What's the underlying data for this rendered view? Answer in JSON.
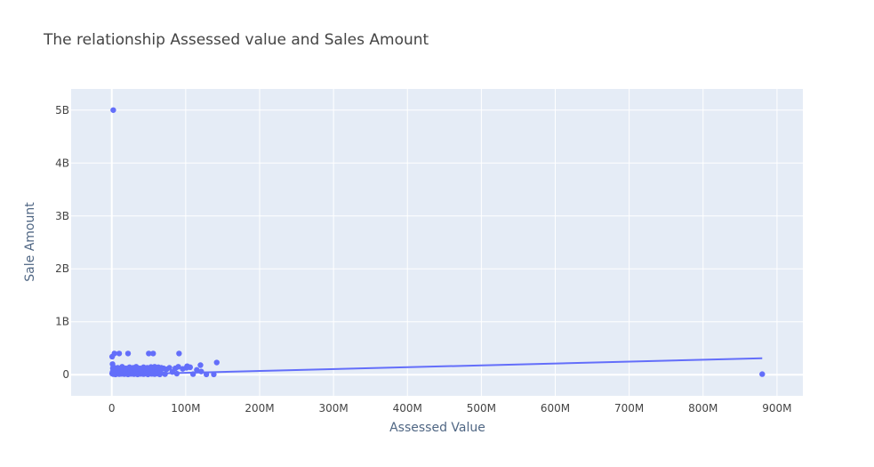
{
  "chart_data": {
    "type": "scatter",
    "title": "The relationship Assessed value and Sales Amount",
    "xlabel": "Assessed Value",
    "ylabel": "Sale Amount",
    "xlim": [
      -55000000,
      935000000
    ],
    "ylim": [
      -400000000,
      5400000000
    ],
    "x_ticks": [
      {
        "value": 0,
        "label": "0"
      },
      {
        "value": 100000000,
        "label": "100M"
      },
      {
        "value": 200000000,
        "label": "200M"
      },
      {
        "value": 300000000,
        "label": "300M"
      },
      {
        "value": 400000000,
        "label": "400M"
      },
      {
        "value": 500000000,
        "label": "500M"
      },
      {
        "value": 600000000,
        "label": "600M"
      },
      {
        "value": 700000000,
        "label": "700M"
      },
      {
        "value": 800000000,
        "label": "800M"
      },
      {
        "value": 900000000,
        "label": "900M"
      }
    ],
    "y_ticks": [
      {
        "value": 0,
        "label": "0"
      },
      {
        "value": 1000000000,
        "label": "1B"
      },
      {
        "value": 2000000000,
        "label": "2B"
      },
      {
        "value": 3000000000,
        "label": "3B"
      },
      {
        "value": 4000000000,
        "label": "4B"
      },
      {
        "value": 5000000000,
        "label": "5B"
      }
    ],
    "grid": true,
    "legend": "none",
    "colors": {
      "marker": "#636efa",
      "plot_background": "#e5ecf6",
      "grid": "#ffffff"
    },
    "series": [
      {
        "type": "scatter",
        "x": [
          2000000,
          500000,
          1000000,
          1500000,
          3500000,
          10000000,
          22000000,
          50000000,
          56000000,
          91000000,
          500000,
          1000000,
          2000000,
          3000000,
          4000000,
          5000000,
          6000000,
          7000000,
          8000000,
          9000000,
          10000000,
          11000000,
          12000000,
          13000000,
          14000000,
          15000000,
          16000000,
          17000000,
          18000000,
          19000000,
          20000000,
          21000000,
          22000000,
          23000000,
          24000000,
          25000000,
          26000000,
          27000000,
          28000000,
          29000000,
          30000000,
          31000000,
          32000000,
          33000000,
          34000000,
          35000000,
          36000000,
          37000000,
          38000000,
          39000000,
          40000000,
          41000000,
          42000000,
          43000000,
          44000000,
          45000000,
          46000000,
          47000000,
          48000000,
          49000000,
          50000000,
          51000000,
          52000000,
          53000000,
          54000000,
          55000000,
          56000000,
          57000000,
          58000000,
          59000000,
          60000000,
          61000000,
          62000000,
          63000000,
          64000000,
          65000000,
          66000000,
          2500000,
          8000000,
          14000000,
          19000000,
          24000000,
          29000000,
          33000000,
          38000000,
          43000000,
          48000000,
          53000000,
          58000000,
          63000000,
          67000000,
          70000000,
          74000000,
          78000000,
          82000000,
          86000000,
          90000000,
          96000000,
          102000000,
          106000000,
          110000000,
          115000000,
          121000000,
          128000000,
          138000000,
          142000000,
          88000000,
          101000000,
          120000000,
          72000000,
          880000000
        ],
        "y": [
          5000000000,
          340000000,
          200000000,
          120000000,
          400000000,
          400000000,
          400000000,
          400000000,
          400000000,
          400000000,
          20000000,
          50000000,
          10000000,
          80000000,
          30000000,
          5000000,
          60000000,
          20000000,
          90000000,
          40000000,
          10000000,
          30000000,
          70000000,
          15000000,
          50000000,
          25000000,
          80000000,
          10000000,
          40000000,
          60000000,
          20000000,
          35000000,
          5000000,
          75000000,
          30000000,
          45000000,
          15000000,
          65000000,
          25000000,
          50000000,
          10000000,
          70000000,
          35000000,
          20000000,
          55000000,
          5000000,
          60000000,
          30000000,
          80000000,
          15000000,
          45000000,
          25000000,
          70000000,
          10000000,
          40000000,
          55000000,
          20000000,
          65000000,
          30000000,
          5000000,
          50000000,
          75000000,
          25000000,
          60000000,
          15000000,
          35000000,
          80000000,
          45000000,
          10000000,
          70000000,
          30000000,
          55000000,
          20000000,
          65000000,
          40000000,
          5000000,
          50000000,
          140000000,
          130000000,
          150000000,
          120000000,
          140000000,
          130000000,
          150000000,
          120000000,
          140000000,
          130000000,
          145000000,
          150000000,
          140000000,
          130000000,
          120000000,
          100000000,
          130000000,
          50000000,
          120000000,
          150000000,
          110000000,
          160000000,
          140000000,
          10000000,
          90000000,
          60000000,
          5000000,
          5000000,
          230000000,
          20000000,
          130000000,
          180000000,
          10000000,
          10000000
        ]
      },
      {
        "type": "line",
        "x": [
          0,
          880000000
        ],
        "y": [
          0,
          310000000
        ]
      }
    ]
  }
}
